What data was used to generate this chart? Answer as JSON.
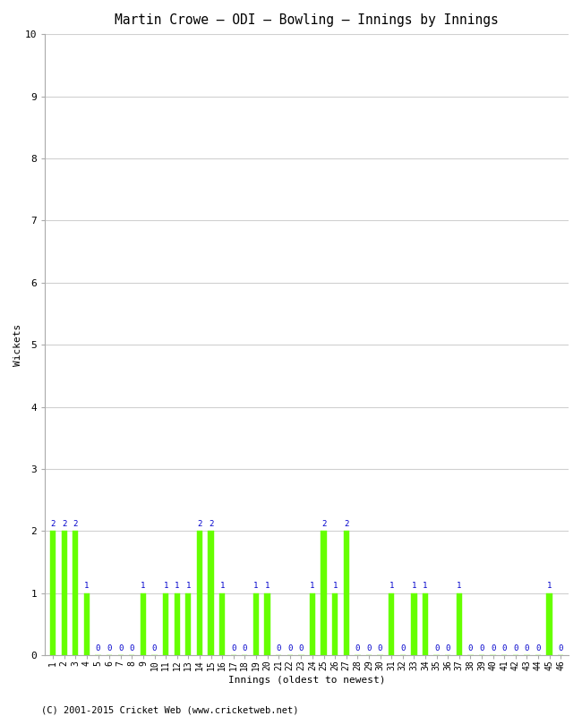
{
  "title": "Martin Crowe – ODI – Bowling – Innings by Innings",
  "xlabel": "Innings (oldest to newest)",
  "ylabel": "Wickets",
  "ylim": [
    0,
    10
  ],
  "yticks": [
    0,
    1,
    2,
    3,
    4,
    5,
    6,
    7,
    8,
    9,
    10
  ],
  "innings": [
    1,
    2,
    3,
    4,
    5,
    6,
    7,
    8,
    9,
    10,
    11,
    12,
    13,
    14,
    15,
    16,
    17,
    18,
    19,
    20,
    21,
    22,
    23,
    24,
    25,
    26,
    27,
    28,
    29,
    30,
    31,
    32,
    33,
    34,
    35,
    36,
    37,
    38,
    39,
    40,
    41,
    42,
    43,
    44,
    45,
    46
  ],
  "wickets": [
    2,
    2,
    2,
    1,
    0,
    0,
    0,
    0,
    1,
    0,
    1,
    1,
    1,
    2,
    2,
    1,
    0,
    0,
    1,
    1,
    0,
    0,
    0,
    1,
    2,
    1,
    2,
    0,
    0,
    0,
    1,
    0,
    1,
    1,
    0,
    0,
    1,
    0,
    0,
    0,
    0,
    0,
    0,
    0,
    1,
    0
  ],
  "bar_color": "#66ff00",
  "bar_edge_color": "#66ff00",
  "label_color": "#0000cc",
  "background_color": "#ffffff",
  "grid_color": "#d0d0d0",
  "label_fontsize": 6.5,
  "title_fontsize": 10.5,
  "axis_label_fontsize": 8,
  "tick_fontsize": 7,
  "copyright": "(C) 2001-2015 Cricket Web (www.cricketweb.net)"
}
